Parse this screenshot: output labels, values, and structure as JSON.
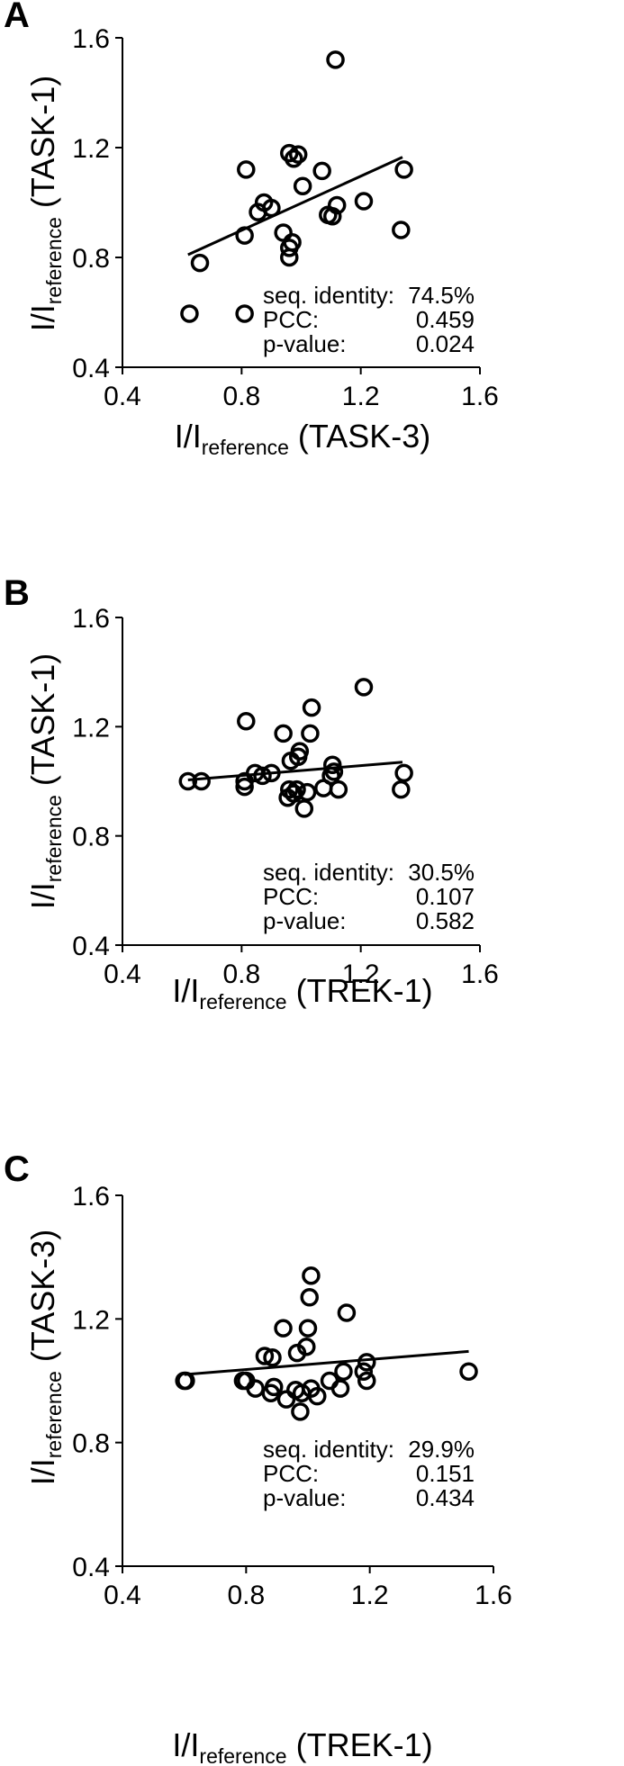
{
  "figure": {
    "panels": [
      {
        "letter": "A",
        "x_title": {
          "prefix": "I/I",
          "sub": "reference",
          "suffix": " (TASK-3)"
        },
        "y_title": {
          "prefix": "I/I",
          "sub": "reference",
          "suffix": " (TASK-1)"
        },
        "stats": [
          {
            "label": "seq. identity:",
            "value": "74.5%"
          },
          {
            "label": "PCC:",
            "value": "0.459"
          },
          {
            "label": "p-value:",
            "value": "0.024"
          }
        ]
      },
      {
        "letter": "B",
        "x_title": {
          "prefix": "I/I",
          "sub": "reference",
          "suffix": " (TREK-1)"
        },
        "y_title": {
          "prefix": "I/I",
          "sub": "reference",
          "suffix": " (TASK-1)"
        },
        "stats": [
          {
            "label": "seq. identity:",
            "value": "30.5%"
          },
          {
            "label": "PCC:",
            "value": "0.107"
          },
          {
            "label": "p-value:",
            "value": "0.582"
          }
        ]
      },
      {
        "letter": "C",
        "x_title": {
          "prefix": "I/I",
          "sub": "reference",
          "suffix": " (TREK-1)"
        },
        "y_title": {
          "prefix": "I/I",
          "sub": "reference",
          "suffix": " (TASK-3)"
        },
        "stats": [
          {
            "label": "seq. identity:",
            "value": "29.9%"
          },
          {
            "label": "PCC:",
            "value": "0.151"
          },
          {
            "label": "p-value:",
            "value": "0.434"
          }
        ]
      }
    ]
  },
  "chart_data": [
    {
      "type": "scatter",
      "title": "",
      "xlabel": "I/Ireference (TASK-3)",
      "ylabel": "I/Ireference (TASK-1)",
      "xlim": [
        0.4,
        1.6
      ],
      "ylim": [
        0.4,
        1.6
      ],
      "x_ticks": [
        "0.4",
        "0.8",
        "1.2",
        "1.6"
      ],
      "y_ticks": [
        "0.4",
        "0.8",
        "1.2",
        "1.6"
      ],
      "grid": false,
      "trendline": {
        "x": [
          0.62,
          1.34
        ],
        "y": [
          0.81,
          1.165
        ]
      },
      "points": [
        {
          "x": 0.625,
          "y": 0.595
        },
        {
          "x": 0.66,
          "y": 0.78
        },
        {
          "x": 0.81,
          "y": 0.595
        },
        {
          "x": 0.81,
          "y": 0.88
        },
        {
          "x": 0.815,
          "y": 1.12
        },
        {
          "x": 0.855,
          "y": 0.965
        },
        {
          "x": 0.875,
          "y": 1.0
        },
        {
          "x": 0.9,
          "y": 0.98
        },
        {
          "x": 0.94,
          "y": 0.89
        },
        {
          "x": 0.96,
          "y": 0.8
        },
        {
          "x": 0.96,
          "y": 0.835
        },
        {
          "x": 0.97,
          "y": 0.855
        },
        {
          "x": 0.96,
          "y": 1.18
        },
        {
          "x": 0.975,
          "y": 1.16
        },
        {
          "x": 0.99,
          "y": 1.175
        },
        {
          "x": 1.005,
          "y": 1.06
        },
        {
          "x": 1.07,
          "y": 1.115
        },
        {
          "x": 1.09,
          "y": 0.955
        },
        {
          "x": 1.105,
          "y": 0.95
        },
        {
          "x": 1.12,
          "y": 0.99
        },
        {
          "x": 1.115,
          "y": 1.52
        },
        {
          "x": 1.21,
          "y": 1.005
        },
        {
          "x": 1.335,
          "y": 0.9
        },
        {
          "x": 1.345,
          "y": 1.12
        }
      ]
    },
    {
      "type": "scatter",
      "title": "",
      "xlabel": "I/Ireference (TREK-1)",
      "ylabel": "I/Ireference (TASK-1)",
      "xlim": [
        0.4,
        1.6
      ],
      "ylim": [
        0.4,
        1.6
      ],
      "x_ticks": [
        "0.4",
        "0.8",
        "1.2",
        "1.6"
      ],
      "y_ticks": [
        "0.4",
        "0.8",
        "1.2",
        "1.6"
      ],
      "grid": false,
      "trendline": {
        "x": [
          0.62,
          1.34
        ],
        "y": [
          1.005,
          1.07
        ]
      },
      "points": [
        {
          "x": 0.62,
          "y": 1.0
        },
        {
          "x": 0.665,
          "y": 1.0
        },
        {
          "x": 0.81,
          "y": 0.98
        },
        {
          "x": 0.81,
          "y": 1.0
        },
        {
          "x": 0.815,
          "y": 1.22
        },
        {
          "x": 0.845,
          "y": 1.03
        },
        {
          "x": 0.87,
          "y": 1.02
        },
        {
          "x": 0.9,
          "y": 1.03
        },
        {
          "x": 0.94,
          "y": 1.175
        },
        {
          "x": 0.955,
          "y": 0.94
        },
        {
          "x": 0.96,
          "y": 0.97
        },
        {
          "x": 0.965,
          "y": 1.075
        },
        {
          "x": 0.975,
          "y": 0.955
        },
        {
          "x": 0.985,
          "y": 0.97
        },
        {
          "x": 0.99,
          "y": 1.09
        },
        {
          "x": 0.995,
          "y": 1.11
        },
        {
          "x": 1.01,
          "y": 0.9
        },
        {
          "x": 1.02,
          "y": 0.96
        },
        {
          "x": 1.03,
          "y": 1.175
        },
        {
          "x": 1.035,
          "y": 1.27
        },
        {
          "x": 1.075,
          "y": 0.975
        },
        {
          "x": 1.1,
          "y": 1.02
        },
        {
          "x": 1.105,
          "y": 1.06
        },
        {
          "x": 1.11,
          "y": 1.035
        },
        {
          "x": 1.125,
          "y": 0.97
        },
        {
          "x": 1.21,
          "y": 1.345
        },
        {
          "x": 1.335,
          "y": 0.97
        },
        {
          "x": 1.345,
          "y": 1.03
        }
      ]
    },
    {
      "type": "scatter",
      "title": "",
      "xlabel": "I/Ireference (TREK-1)",
      "ylabel": "I/Ireference (TASK-3)",
      "xlim": [
        0.4,
        1.6
      ],
      "ylim": [
        0.4,
        1.6
      ],
      "x_ticks": [
        "0.4",
        "0.8",
        "1.2",
        "1.6"
      ],
      "y_ticks": [
        "0.4",
        "0.8",
        "1.2",
        "1.6"
      ],
      "grid": false,
      "trendline": {
        "x": [
          0.6,
          1.52
        ],
        "y": [
          1.02,
          1.095
        ]
      },
      "points": [
        {
          "x": 0.6,
          "y": 1.0
        },
        {
          "x": 0.605,
          "y": 1.0
        },
        {
          "x": 0.79,
          "y": 1.0
        },
        {
          "x": 0.8,
          "y": 1.0
        },
        {
          "x": 0.83,
          "y": 0.975
        },
        {
          "x": 0.86,
          "y": 1.08
        },
        {
          "x": 0.88,
          "y": 0.96
        },
        {
          "x": 0.885,
          "y": 1.075
        },
        {
          "x": 0.89,
          "y": 0.98
        },
        {
          "x": 0.92,
          "y": 1.17
        },
        {
          "x": 0.93,
          "y": 0.94
        },
        {
          "x": 0.96,
          "y": 0.97
        },
        {
          "x": 0.965,
          "y": 1.09
        },
        {
          "x": 0.975,
          "y": 0.9
        },
        {
          "x": 0.98,
          "y": 0.96
        },
        {
          "x": 0.995,
          "y": 1.11
        },
        {
          "x": 1.0,
          "y": 1.17
        },
        {
          "x": 1.005,
          "y": 1.27
        },
        {
          "x": 1.01,
          "y": 1.34
        },
        {
          "x": 1.01,
          "y": 0.975
        },
        {
          "x": 1.03,
          "y": 0.95
        },
        {
          "x": 1.07,
          "y": 1.0
        },
        {
          "x": 1.105,
          "y": 0.975
        },
        {
          "x": 1.115,
          "y": 1.03
        },
        {
          "x": 1.125,
          "y": 1.22
        },
        {
          "x": 1.18,
          "y": 1.03
        },
        {
          "x": 1.19,
          "y": 1.06
        },
        {
          "x": 1.19,
          "y": 1.0
        },
        {
          "x": 1.52,
          "y": 1.03
        }
      ]
    }
  ]
}
